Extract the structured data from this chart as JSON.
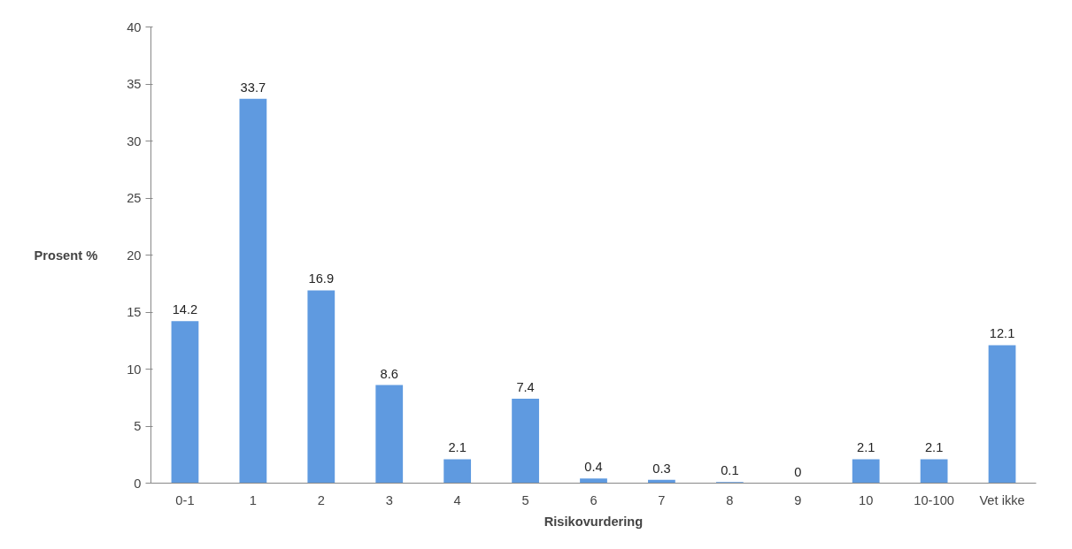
{
  "chart_data": {
    "type": "bar",
    "xlabel": "Risikovurdering",
    "ylabel": "Prosent %",
    "categories": [
      "0-1",
      "1",
      "2",
      "3",
      "4",
      "5",
      "6",
      "7",
      "8",
      "9",
      "10",
      "10-100",
      "Vet ikke"
    ],
    "values": [
      14.2,
      33.7,
      16.9,
      8.6,
      2.1,
      7.4,
      0.4,
      0.3,
      0.1,
      0,
      2.1,
      2.1,
      12.1
    ],
    "color": "#5f9ae0",
    "ylim": [
      0,
      40
    ],
    "yticks": [
      0,
      5,
      10,
      15,
      20,
      25,
      30,
      35,
      40
    ],
    "grid": false,
    "data_labels": true
  }
}
